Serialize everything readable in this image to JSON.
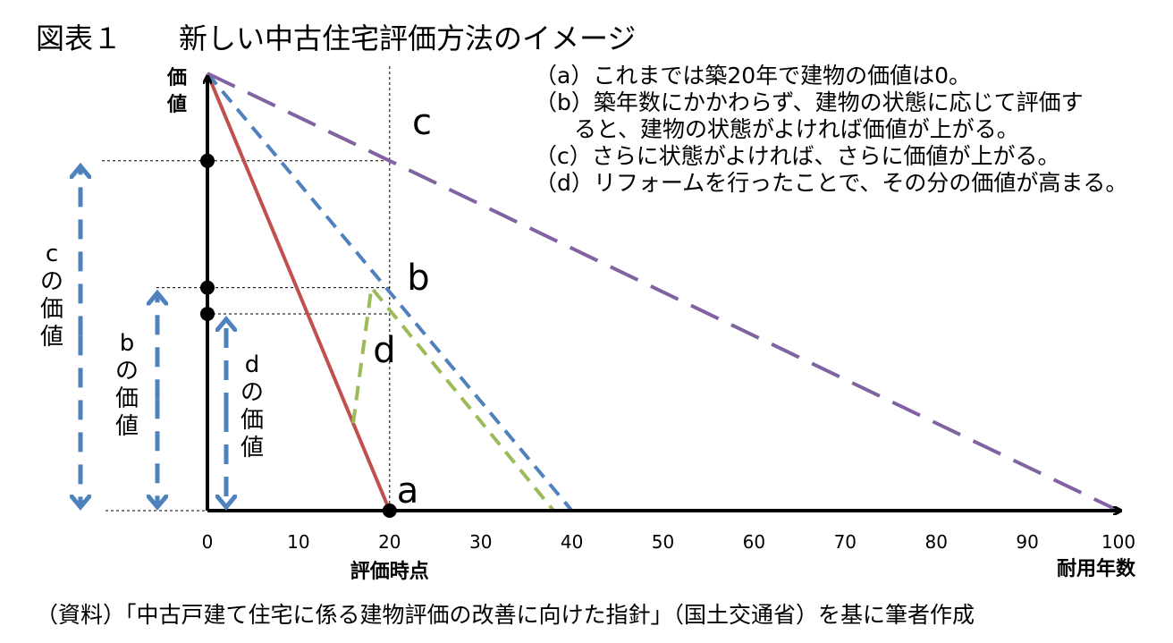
{
  "title": "図表１　　新しい中古住宅評価方法のイメージ",
  "notes": {
    "a": "（a）これまでは築20年で建物の価値は0。",
    "b1": "（b）築年数にかかわらず、建物の状態に応じて評価す",
    "b2": "ると、建物の状態がよければ価値が上がる。",
    "c": "（c）さらに状態がよければ、さらに価値が上がる。",
    "d": "（d）リフォームを行ったことで、その分の価値が高まる。"
  },
  "source": "（資料）「中古戸建て住宅に係る建物評価の改善に向けた指針」（国土交通省）を基に筆者作成",
  "chart_data": {
    "type": "line",
    "title": "",
    "xlabel": "耐用年数",
    "ylabel": "価値",
    "xlim": [
      0,
      100
    ],
    "ylim": [
      0,
      100
    ],
    "xticks": [
      0,
      10,
      20,
      30,
      40,
      50,
      60,
      70,
      80,
      90,
      100
    ],
    "eval_point": 20,
    "eval_label": "評価時点",
    "series": [
      {
        "name": "a",
        "style": "solid",
        "color": "#c0504d",
        "x": [
          0,
          20
        ],
        "y": [
          100,
          0
        ]
      },
      {
        "name": "b",
        "style": "dashed",
        "color": "#4f81bd",
        "x": [
          0,
          20,
          40
        ],
        "y": [
          100,
          50,
          0
        ]
      },
      {
        "name": "c",
        "style": "longdash",
        "color": "#8064a2",
        "x": [
          0,
          20,
          100
        ],
        "y": [
          100,
          80,
          0
        ]
      },
      {
        "name": "d",
        "style": "dashed",
        "color": "#9bbb59",
        "x": [
          16,
          18,
          38
        ],
        "y": [
          20,
          51,
          0
        ]
      }
    ],
    "value_markers": [
      {
        "name": "cの価値",
        "y": 80
      },
      {
        "name": "bの価値",
        "y": 51
      },
      {
        "name": "dの価値",
        "y": 45
      }
    ],
    "vertical_labels": {
      "c": [
        "c",
        "の",
        "価",
        "値"
      ],
      "b": [
        "b",
        "の",
        "価",
        "値"
      ],
      "d": [
        "d",
        "の",
        "価",
        "値"
      ]
    },
    "axis_colors": {
      "arrow": "#4f81bd",
      "axis": "#000000"
    }
  }
}
